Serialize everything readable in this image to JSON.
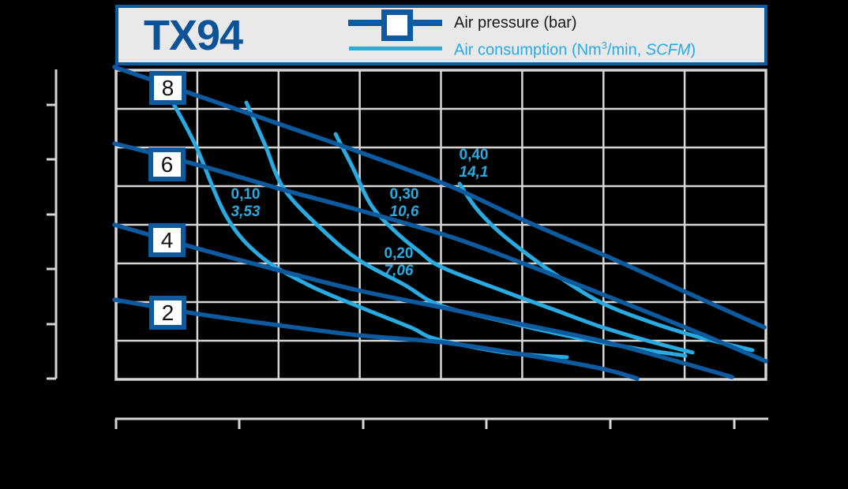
{
  "header": {
    "model": "TX94",
    "legend": {
      "pressure_label": "Air pressure (bar)",
      "consumption_prefix": "Air consumption (Nm",
      "consumption_sup": "3",
      "consumption_mid": "/min, ",
      "consumption_italic": "SCFM",
      "consumption_suffix": ")"
    }
  },
  "chart_data": {
    "type": "line",
    "title": "TX94",
    "legend_entries": [
      "Air pressure (bar)",
      "Air consumption (Nm3/min, SCFM)"
    ],
    "pressure_lines": [
      {
        "label": "8",
        "pressure_bar": 8
      },
      {
        "label": "6",
        "pressure_bar": 6
      },
      {
        "label": "4",
        "pressure_bar": 4
      },
      {
        "label": "2",
        "pressure_bar": 2
      }
    ],
    "consumption_curves": [
      {
        "nm3_per_min": "0,10",
        "scfm": "3,53"
      },
      {
        "nm3_per_min": "0,20",
        "scfm": "7,06"
      },
      {
        "nm3_per_min": "0,30",
        "scfm": "10,6"
      },
      {
        "nm3_per_min": "0,40",
        "scfm": "14,1"
      }
    ],
    "axes": {
      "grid_columns": 8,
      "grid_rows": 8,
      "left_axis_tick_count": 6,
      "bottom_axis_tick_count": 6,
      "tick_labels_visible": false
    },
    "layout": {
      "legend_position": "top",
      "grid": true
    },
    "colors": {
      "pressure": "#0E5A9E",
      "consumption": "#29ABE2",
      "grid": "#D6D6D6"
    }
  }
}
